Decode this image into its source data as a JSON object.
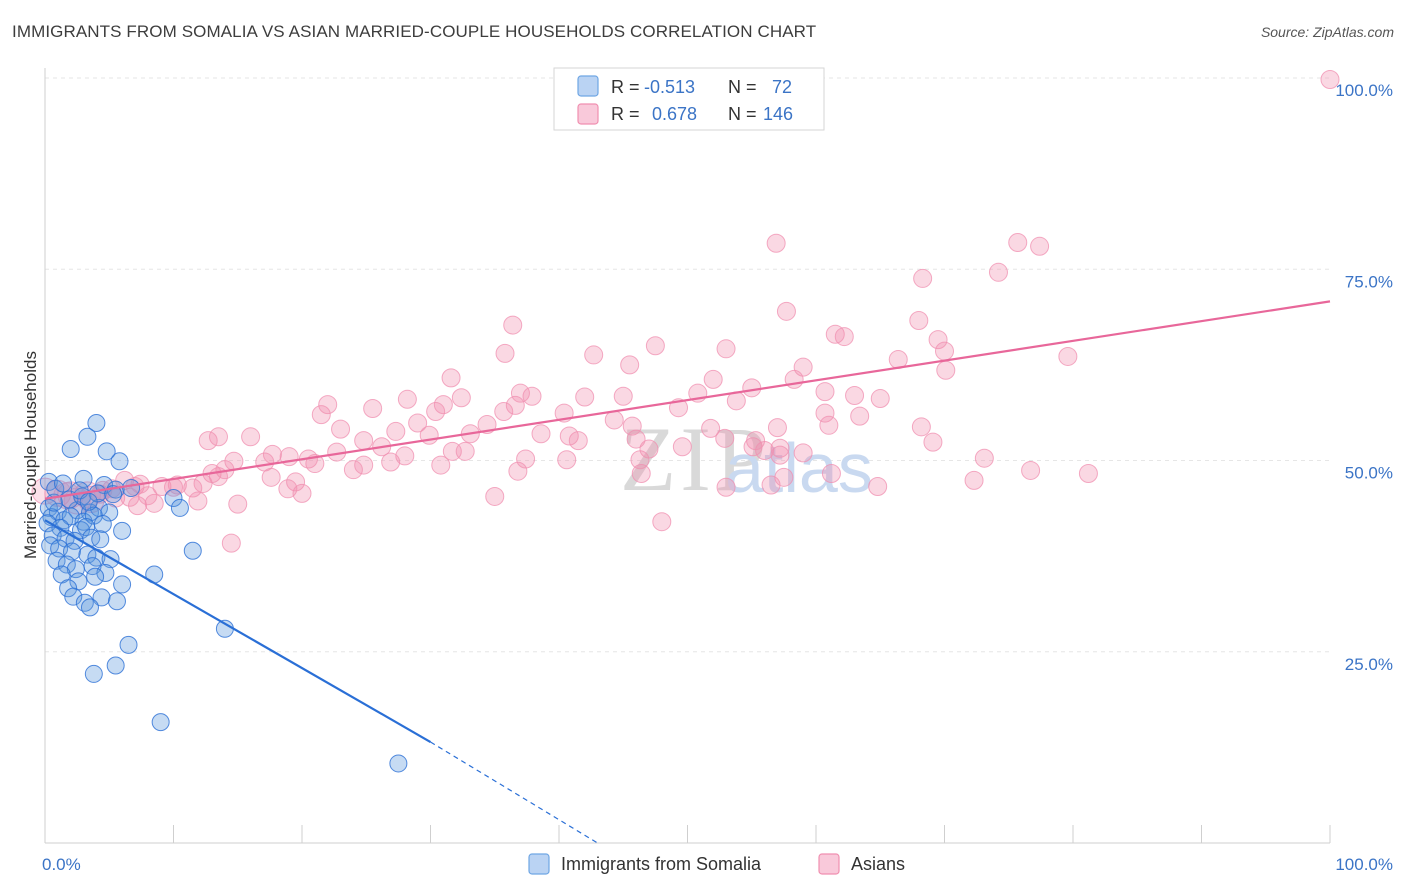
{
  "title": "IMMIGRANTS FROM SOMALIA VS ASIAN MARRIED-COUPLE HOUSEHOLDS CORRELATION CHART",
  "source": "Source: ZipAtlas.com",
  "watermark": {
    "zip": "ZIP",
    "atlas": "atlas"
  },
  "legend": {
    "rows": [
      {
        "r_label": "R =",
        "r_value": "-0.513",
        "n_label": "N =",
        "n_value": "72",
        "color": "#6fa6e4"
      },
      {
        "r_label": "R =",
        "r_value": "0.678",
        "n_label": "N =",
        "n_value": "146",
        "color": "#f08fb0"
      }
    ]
  },
  "colors": {
    "blue": "#5b97dd",
    "blue_line": "#2a6fd6",
    "pink": "#f08fb0",
    "pink_line": "#e8679a",
    "tick": "#3b74c6"
  },
  "chart_data": {
    "type": "scatter",
    "title": "IMMIGRANTS FROM SOMALIA VS ASIAN MARRIED-COUPLE HOUSEHOLDS CORRELATION CHART",
    "xlabel": "",
    "ylabel": "Married-couple Households",
    "xlim": [
      0,
      100
    ],
    "ylim": [
      0,
      100
    ],
    "x_tick_labels": [
      "0.0%",
      "100.0%"
    ],
    "y_tick_labels": [
      "25.0%",
      "50.0%",
      "75.0%",
      "100.0%"
    ],
    "y_ticks": [
      25,
      50,
      75,
      100
    ],
    "series": [
      {
        "name": "Immigrants from Somalia",
        "r": -0.513,
        "n": 72,
        "trend": {
          "x0": 0,
          "y0": 42.2,
          "x1": 30,
          "y1": 13.2,
          "dash_to_x": 43,
          "dash_to_y": 0
        },
        "points": [
          [
            4.0,
            54.9
          ],
          [
            3.3,
            53.1
          ],
          [
            2.0,
            51.5
          ],
          [
            4.8,
            51.2
          ],
          [
            5.8,
            49.9
          ],
          [
            3.0,
            47.6
          ],
          [
            4.6,
            46.8
          ],
          [
            5.5,
            46.2
          ],
          [
            10.0,
            45.1
          ],
          [
            0.3,
            43.8
          ],
          [
            1.0,
            43.3
          ],
          [
            2.5,
            43.5
          ],
          [
            3.5,
            43.2
          ],
          [
            4.2,
            43.8
          ],
          [
            5.0,
            43.2
          ],
          [
            10.5,
            43.8
          ],
          [
            0.5,
            42.6
          ],
          [
            1.5,
            42.2
          ],
          [
            2.0,
            42.7
          ],
          [
            3.0,
            42.0
          ],
          [
            3.8,
            42.8
          ],
          [
            0.2,
            41.8
          ],
          [
            1.2,
            41.2
          ],
          [
            2.8,
            40.9
          ],
          [
            3.2,
            41.3
          ],
          [
            4.5,
            41.7
          ],
          [
            6.0,
            40.8
          ],
          [
            0.6,
            40.2
          ],
          [
            1.6,
            39.8
          ],
          [
            2.3,
            39.5
          ],
          [
            3.6,
            39.9
          ],
          [
            4.3,
            39.7
          ],
          [
            0.4,
            38.9
          ],
          [
            1.1,
            38.5
          ],
          [
            2.1,
            38.1
          ],
          [
            3.3,
            37.7
          ],
          [
            4.0,
            37.3
          ],
          [
            5.1,
            37.1
          ],
          [
            11.5,
            38.2
          ],
          [
            0.9,
            36.9
          ],
          [
            1.7,
            36.4
          ],
          [
            2.4,
            35.8
          ],
          [
            3.7,
            36.2
          ],
          [
            4.7,
            35.3
          ],
          [
            1.3,
            35.1
          ],
          [
            2.6,
            34.2
          ],
          [
            3.9,
            34.8
          ],
          [
            6.0,
            33.8
          ],
          [
            8.5,
            35.1
          ],
          [
            1.8,
            33.3
          ],
          [
            2.2,
            32.2
          ],
          [
            4.4,
            32.1
          ],
          [
            3.1,
            31.4
          ],
          [
            5.6,
            31.6
          ],
          [
            3.5,
            30.8
          ],
          [
            14.0,
            28.0
          ],
          [
            6.5,
            25.9
          ],
          [
            5.5,
            23.2
          ],
          [
            3.8,
            22.1
          ],
          [
            9.0,
            15.8
          ],
          [
            27.5,
            10.4
          ],
          [
            0.7,
            44.5
          ],
          [
            1.9,
            44.9
          ],
          [
            2.9,
            45.3
          ],
          [
            0.3,
            47.2
          ],
          [
            4.1,
            45.7
          ],
          [
            5.3,
            45.6
          ],
          [
            0.8,
            46.3
          ],
          [
            1.4,
            47.0
          ],
          [
            2.7,
            46.1
          ],
          [
            3.4,
            44.6
          ],
          [
            6.7,
            46.4
          ]
        ]
      },
      {
        "name": "Asians",
        "r": 0.678,
        "n": 146,
        "trend": {
          "x0": 0,
          "y0": 45.0,
          "x1": 100,
          "y1": 70.8
        },
        "points": [
          [
            100.0,
            99.8
          ],
          [
            56.9,
            78.4
          ],
          [
            75.7,
            78.5
          ],
          [
            77.4,
            78.0
          ],
          [
            74.2,
            74.6
          ],
          [
            68.3,
            73.8
          ],
          [
            57.7,
            69.5
          ],
          [
            68.0,
            68.3
          ],
          [
            36.4,
            67.7
          ],
          [
            61.5,
            66.5
          ],
          [
            62.2,
            66.2
          ],
          [
            69.5,
            65.8
          ],
          [
            47.5,
            65.0
          ],
          [
            53.0,
            64.6
          ],
          [
            35.8,
            64.0
          ],
          [
            42.7,
            63.8
          ],
          [
            70.0,
            64.3
          ],
          [
            79.6,
            63.6
          ],
          [
            66.4,
            63.2
          ],
          [
            45.5,
            62.5
          ],
          [
            59.0,
            62.2
          ],
          [
            70.1,
            61.8
          ],
          [
            31.6,
            60.8
          ],
          [
            52.0,
            60.6
          ],
          [
            58.3,
            60.6
          ],
          [
            55.0,
            59.5
          ],
          [
            60.7,
            59.0
          ],
          [
            50.8,
            58.8
          ],
          [
            63.0,
            58.5
          ],
          [
            37.0,
            58.8
          ],
          [
            32.4,
            58.2
          ],
          [
            37.9,
            58.4
          ],
          [
            28.2,
            58.0
          ],
          [
            42.0,
            58.3
          ],
          [
            53.8,
            57.8
          ],
          [
            65.0,
            58.1
          ],
          [
            45.0,
            58.4
          ],
          [
            22.0,
            57.3
          ],
          [
            25.5,
            56.8
          ],
          [
            30.4,
            56.4
          ],
          [
            35.7,
            56.4
          ],
          [
            36.6,
            57.2
          ],
          [
            49.3,
            56.9
          ],
          [
            60.7,
            56.2
          ],
          [
            21.5,
            56.0
          ],
          [
            40.4,
            56.2
          ],
          [
            63.4,
            55.8
          ],
          [
            44.3,
            55.3
          ],
          [
            29.0,
            54.9
          ],
          [
            34.4,
            54.7
          ],
          [
            45.7,
            54.5
          ],
          [
            51.8,
            54.2
          ],
          [
            57.0,
            54.3
          ],
          [
            61.0,
            54.6
          ],
          [
            68.2,
            54.4
          ],
          [
            23.0,
            54.1
          ],
          [
            27.3,
            53.8
          ],
          [
            29.9,
            53.3
          ],
          [
            33.1,
            53.5
          ],
          [
            38.6,
            53.5
          ],
          [
            40.8,
            53.2
          ],
          [
            41.5,
            52.6
          ],
          [
            24.8,
            52.6
          ],
          [
            46.0,
            52.8
          ],
          [
            52.9,
            52.9
          ],
          [
            55.3,
            52.6
          ],
          [
            69.1,
            52.4
          ],
          [
            55.1,
            51.8
          ],
          [
            57.2,
            51.6
          ],
          [
            26.2,
            51.8
          ],
          [
            31.7,
            51.2
          ],
          [
            47.0,
            51.5
          ],
          [
            49.6,
            51.8
          ],
          [
            56.0,
            51.3
          ],
          [
            59.0,
            51.0
          ],
          [
            17.7,
            50.8
          ],
          [
            22.7,
            51.1
          ],
          [
            32.7,
            51.2
          ],
          [
            28.0,
            50.6
          ],
          [
            37.4,
            50.2
          ],
          [
            40.6,
            50.1
          ],
          [
            46.3,
            50.1
          ],
          [
            57.2,
            50.7
          ],
          [
            19.0,
            50.5
          ],
          [
            20.5,
            50.2
          ],
          [
            26.9,
            49.8
          ],
          [
            30.8,
            49.4
          ],
          [
            12.7,
            52.6
          ],
          [
            13.5,
            53.1
          ],
          [
            16.0,
            53.1
          ],
          [
            21.0,
            49.6
          ],
          [
            24.0,
            48.8
          ],
          [
            24.8,
            49.4
          ],
          [
            14.7,
            49.9
          ],
          [
            17.1,
            49.8
          ],
          [
            36.8,
            48.6
          ],
          [
            46.4,
            48.3
          ],
          [
            57.5,
            47.8
          ],
          [
            72.3,
            47.4
          ],
          [
            81.2,
            48.3
          ],
          [
            73.1,
            50.3
          ],
          [
            61.2,
            48.3
          ],
          [
            17.6,
            47.8
          ],
          [
            13.0,
            48.3
          ],
          [
            14.0,
            48.8
          ],
          [
            13.5,
            47.9
          ],
          [
            12.3,
            47.0
          ],
          [
            10.0,
            46.5
          ],
          [
            7.0,
            46.6
          ],
          [
            6.2,
            47.4
          ],
          [
            7.4,
            46.9
          ],
          [
            5.2,
            46.3
          ],
          [
            4.5,
            46.1
          ],
          [
            3.3,
            45.5
          ],
          [
            2.0,
            45.5
          ],
          [
            1.0,
            45.7
          ],
          [
            0.0,
            46.0
          ],
          [
            1.7,
            45.4
          ],
          [
            2.5,
            44.7
          ],
          [
            3.6,
            44.9
          ],
          [
            4.3,
            45.6
          ],
          [
            5.5,
            45.1
          ],
          [
            6.6,
            45.2
          ],
          [
            8.0,
            45.4
          ],
          [
            9.1,
            46.6
          ],
          [
            10.3,
            46.8
          ],
          [
            11.5,
            46.4
          ],
          [
            18.9,
            46.3
          ],
          [
            19.5,
            47.2
          ],
          [
            20.0,
            45.7
          ],
          [
            7.2,
            44.1
          ],
          [
            8.5,
            44.4
          ],
          [
            11.9,
            44.7
          ],
          [
            15.0,
            44.3
          ],
          [
            56.5,
            46.8
          ],
          [
            53.0,
            46.5
          ],
          [
            64.8,
            46.6
          ],
          [
            35.0,
            45.3
          ],
          [
            48.0,
            42.0
          ],
          [
            14.5,
            39.2
          ],
          [
            76.7,
            48.7
          ],
          [
            31.0,
            57.3
          ]
        ]
      }
    ]
  },
  "bottom_legend": [
    {
      "label": "Immigrants from Somalia"
    },
    {
      "label": "Asians"
    }
  ]
}
